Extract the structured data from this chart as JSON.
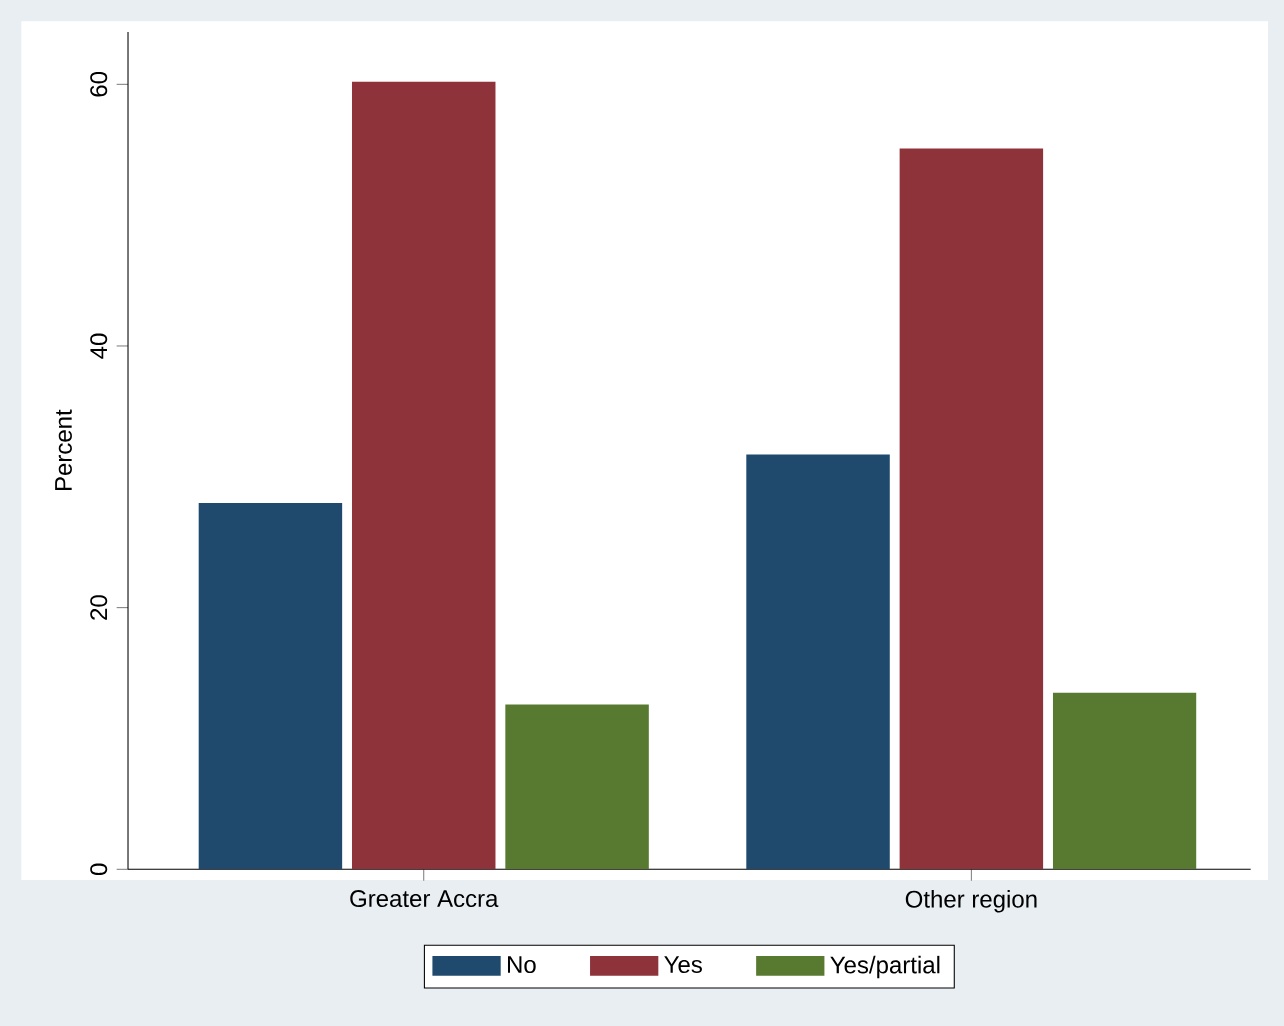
{
  "chart_data": {
    "type": "bar",
    "ylabel": "Percent",
    "categories": [
      "Greater Accra",
      "Other region"
    ],
    "series": [
      {
        "name": "No",
        "color": "#1f4a6e",
        "values": [
          28,
          31.7
        ]
      },
      {
        "name": "Yes",
        "color": "#8f333b",
        "values": [
          60.2,
          55.1
        ]
      },
      {
        "name": "Yes/partial",
        "color": "#587a30",
        "values": [
          12.6,
          13.5
        ]
      }
    ],
    "ylim": [
      0,
      64
    ],
    "yticks": [
      0,
      20,
      40,
      60
    ],
    "grid": false,
    "legend": "bottom"
  }
}
